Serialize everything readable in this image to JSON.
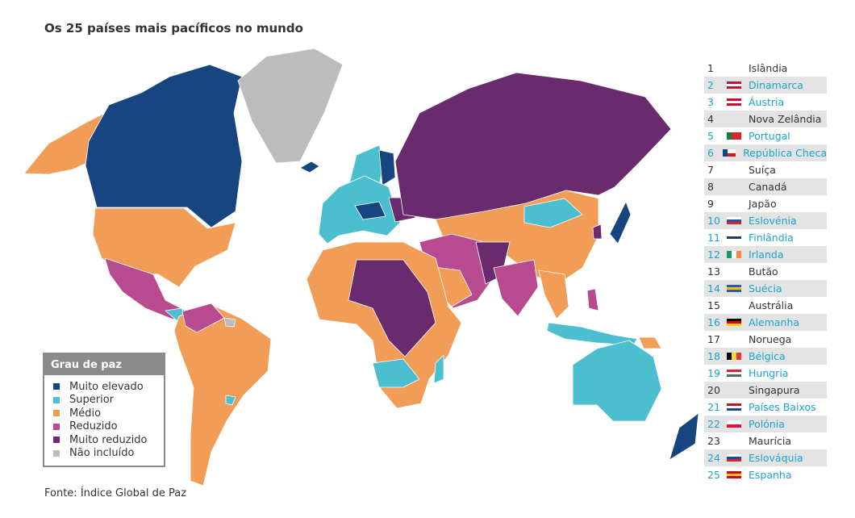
{
  "title": "Os 25 países mais pacíficos no mundo",
  "source": "Fonte: Índice Global de Paz",
  "legend": {
    "title": "Grau de paz",
    "items": [
      {
        "label": "Muito elevado",
        "color": "#17457f"
      },
      {
        "label": "Superior",
        "color": "#4bbfcf"
      },
      {
        "label": "Médio",
        "color": "#f29d57"
      },
      {
        "label": "Reduzido",
        "color": "#b84a90"
      },
      {
        "label": "Muito reduzido",
        "color": "#6a2a6e"
      },
      {
        "label": "Não incluído",
        "color": "#bcbcbc"
      }
    ]
  },
  "ranking": [
    {
      "rank": "1",
      "country": "Islândia",
      "eu": false,
      "flag": []
    },
    {
      "rank": "2",
      "country": "Dinamarca",
      "eu": true,
      "flag": [
        "#c8102e",
        "#fff",
        "#c8102e"
      ]
    },
    {
      "rank": "3",
      "country": "Áustria",
      "eu": true,
      "flag": [
        "#c8102e",
        "#fff",
        "#c8102e"
      ]
    },
    {
      "rank": "4",
      "country": "Nova Zelândia",
      "eu": false,
      "flag": []
    },
    {
      "rank": "5",
      "country": "Portugal",
      "eu": true,
      "flag": [
        "#d62828"
      ],
      "left": "#1c7c3a"
    },
    {
      "rank": "6",
      "country": "República Checa",
      "eu": true,
      "flag": [
        "#fff",
        "#d7141a"
      ],
      "left": "#11457e"
    },
    {
      "rank": "7",
      "country": "Suíça",
      "eu": false,
      "flag": []
    },
    {
      "rank": "8",
      "country": "Canadá",
      "eu": false,
      "flag": []
    },
    {
      "rank": "9",
      "country": "Japão",
      "eu": false,
      "flag": []
    },
    {
      "rank": "10",
      "country": "Eslovénia",
      "eu": true,
      "flag": [
        "#fff",
        "#2851a3",
        "#d52b1e"
      ]
    },
    {
      "rank": "11",
      "country": "Finlândia",
      "eu": true,
      "flag": [
        "#fff",
        "#1f3a6e",
        "#fff"
      ]
    },
    {
      "rank": "12",
      "country": "Irlanda",
      "eu": true,
      "vflag": [
        "#169b62",
        "#fff",
        "#ff883e"
      ]
    },
    {
      "rank": "13",
      "country": "Butão",
      "eu": false,
      "flag": []
    },
    {
      "rank": "14",
      "country": "Suécia",
      "eu": true,
      "flag": [
        "#2b5ea8",
        "#f5c400",
        "#2b5ea8"
      ]
    },
    {
      "rank": "15",
      "country": "Austrália",
      "eu": false,
      "flag": []
    },
    {
      "rank": "16",
      "country": "Alemanha",
      "eu": true,
      "flag": [
        "#000",
        "#dd0000",
        "#ffce00"
      ]
    },
    {
      "rank": "17",
      "country": "Noruega",
      "eu": false,
      "flag": []
    },
    {
      "rank": "18",
      "country": "Bélgica",
      "eu": true,
      "vflag": [
        "#000",
        "#fdda24",
        "#ef3340"
      ]
    },
    {
      "rank": "19",
      "country": "Hungria",
      "eu": true,
      "flag": [
        "#ce2939",
        "#fff",
        "#477050"
      ]
    },
    {
      "rank": "20",
      "country": "Singapura",
      "eu": false,
      "flag": []
    },
    {
      "rank": "21",
      "country": "Países Baixos",
      "eu": true,
      "flag": [
        "#ae1c28",
        "#fff",
        "#21468b"
      ]
    },
    {
      "rank": "22",
      "country": "Polónia",
      "eu": true,
      "flag": [
        "#fff",
        "#dc143c"
      ]
    },
    {
      "rank": "23",
      "country": "Maurícia",
      "eu": false,
      "flag": []
    },
    {
      "rank": "24",
      "country": "Eslováquia",
      "eu": true,
      "flag": [
        "#fff",
        "#0b4ea2",
        "#ee1c25"
      ]
    },
    {
      "rank": "25",
      "country": "Espanha",
      "eu": true,
      "flag": [
        "#c60b1e",
        "#ffc400",
        "#c60b1e"
      ]
    }
  ]
}
